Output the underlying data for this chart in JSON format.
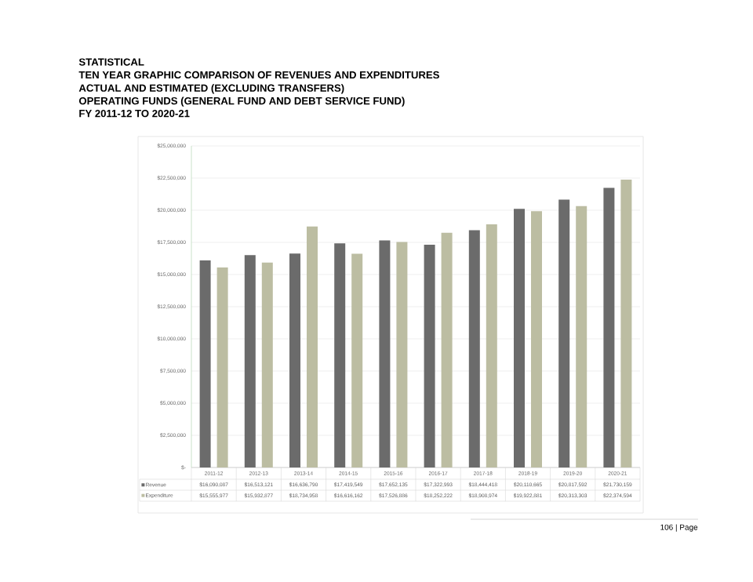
{
  "chart_data": {
    "type": "bar",
    "title": "STATISTICAL",
    "subtitle": "TEN YEAR GRAPHIC COMPARISON OF REVENUES AND EXPENDITURES",
    "annotations": [
      "ACTUAL AND ESTIMATED (EXCLUDING TRANSFERS)",
      "OPERATING FUNDS (GENERAL FUND AND DEBT SERVICE FUND)",
      "FY 2011-12 TO 2020-21",
      "106 | Page"
    ],
    "categories": [
      "2011-12",
      "2012-13",
      "2013-14",
      "2014-15",
      "2015-16",
      "2016-17",
      "2017-18",
      "2018-19",
      "2019-20",
      "2020-21"
    ],
    "series": [
      {
        "name": "Revenue",
        "color": "#6b6b6b",
        "values": [
          16090087,
          16513121,
          16636790,
          17419549,
          17652135,
          17322993,
          18444418,
          20110665,
          20817592,
          21730159
        ],
        "value_labels": [
          "$16,090,087",
          "$16,513,121",
          "$16,636,790",
          "$17,419,549",
          "$17,652,135",
          "$17,322,993",
          "$18,444,418",
          "$20,110,665",
          "$20,817,592",
          "$21,730,159"
        ]
      },
      {
        "name": "Expenditure",
        "color": "#bcbda2",
        "values": [
          15555977,
          15932877,
          18734958,
          16616162,
          17526886,
          18252222,
          18908974,
          19922881,
          20313303,
          22374594
        ],
        "value_labels": [
          "$15,555,977",
          "$15,932,877",
          "$18,734,958",
          "$16,616,162",
          "$17,526,886",
          "$18,252,222",
          "$18,908,974",
          "$19,922,881",
          "$20,313,303",
          "$22,374,594"
        ]
      }
    ],
    "ylim": [
      0,
      25000000
    ],
    "yticks": [
      {
        "value": 0,
        "label": "$-"
      },
      {
        "value": 2500000,
        "label": "$2,500,000"
      },
      {
        "value": 5000000,
        "label": "$5,000,000"
      },
      {
        "value": 7500000,
        "label": "$7,500,000"
      },
      {
        "value": 10000000,
        "label": "$10,000,000"
      },
      {
        "value": 12500000,
        "label": "$12,500,000"
      },
      {
        "value": 15000000,
        "label": "$15,000,000"
      },
      {
        "value": 17500000,
        "label": "$17,500,000"
      },
      {
        "value": 20000000,
        "label": "$20,000,000"
      },
      {
        "value": 22500000,
        "label": "$22,500,000"
      },
      {
        "value": 25000000,
        "label": "$25,000,000"
      }
    ],
    "grid": "y",
    "legend": "bottom"
  }
}
